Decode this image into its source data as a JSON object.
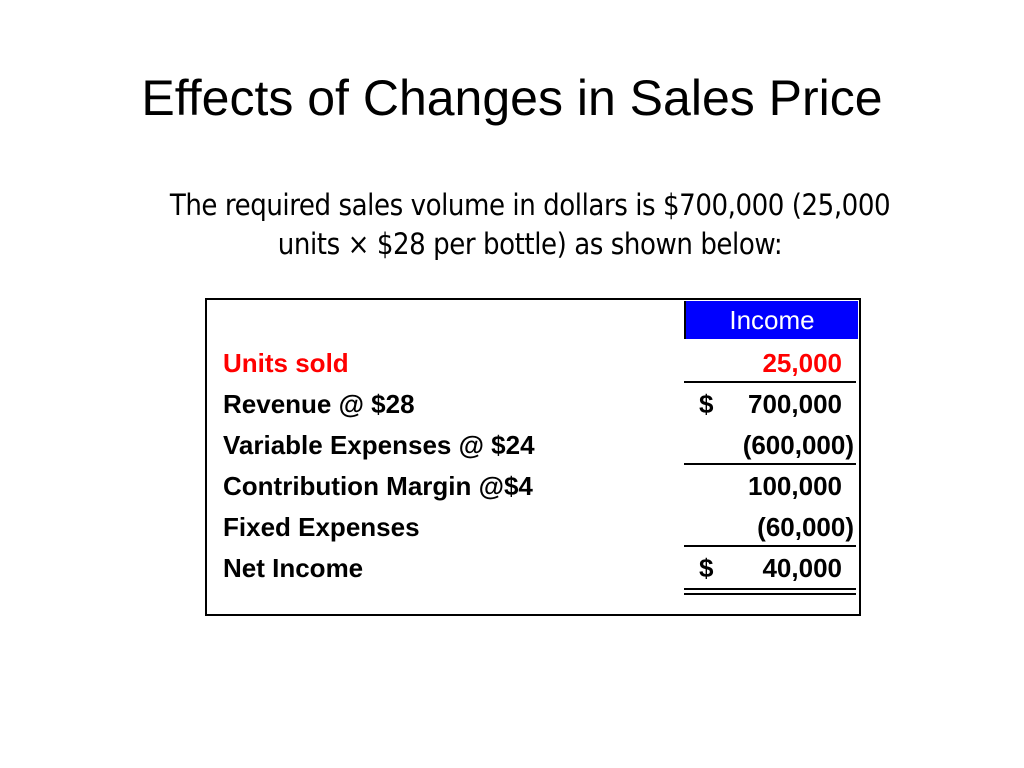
{
  "slide": {
    "title": "Effects of Changes in Sales Price",
    "subtitle_line1": "The required sales volume in dollars is $700,000 (25,000",
    "subtitle_line2": "units × $28 per bottle) as shown below:"
  },
  "table": {
    "column_header": "Income",
    "rows": [
      {
        "label": "Units sold",
        "currency": "",
        "value": "25,000",
        "color": "#ff0000"
      },
      {
        "label": "Revenue @ $28",
        "currency": "$",
        "value": "700,000"
      },
      {
        "label": "Variable Expenses @ $24",
        "currency": "",
        "value": "(600,000)"
      },
      {
        "label": "Contribution Margin @$4",
        "currency": "",
        "value": "100,000"
      },
      {
        "label": "Fixed Expenses",
        "currency": "",
        "value": "(60,000)"
      },
      {
        "label": "Net Income",
        "currency": "$",
        "value": "40,000"
      }
    ]
  }
}
